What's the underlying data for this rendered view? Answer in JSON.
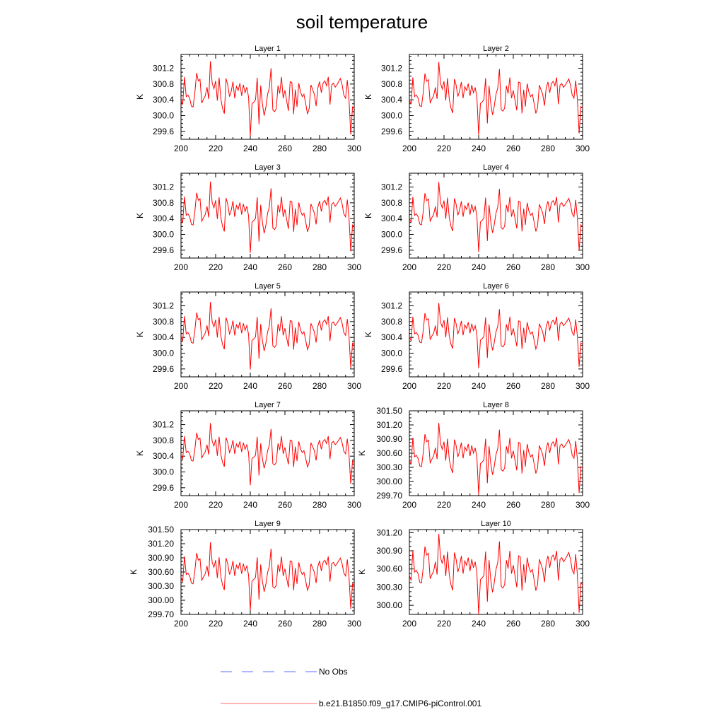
{
  "title": "soil temperature",
  "colors": {
    "series": "#ff0000",
    "obs": "#5b6cff",
    "axis": "#000000"
  },
  "legend": {
    "placement": "bottom",
    "entries": [
      {
        "label": "No Obs",
        "style": "dashed",
        "color": "#5b6cff"
      },
      {
        "label": "b.e21.B1850.f09_g17.CMIP6-piControl.001",
        "style": "solid",
        "color": "#ff0000"
      }
    ]
  },
  "chart_data": [
    {
      "type": "line",
      "title": "Layer 1",
      "ylabel": "K",
      "xlim": [
        200,
        300
      ],
      "xticks": [
        200,
        220,
        240,
        260,
        280,
        300
      ],
      "ylim": [
        299.4,
        301.55
      ],
      "yticks": [
        299.6,
        300.0,
        300.4,
        300.8,
        301.2
      ],
      "ytick_labels": [
        "299.6",
        "300.0",
        "300.4",
        "300.8",
        "301.2"
      ],
      "x_start": 200,
      "x_step": 1,
      "offset": 0.0,
      "scale": 1.0,
      "trim": 0.0
    },
    {
      "type": "line",
      "title": "Layer 2",
      "ylabel": "K",
      "xlim": [
        200,
        300
      ],
      "xticks": [
        200,
        220,
        240,
        260,
        280,
        300
      ],
      "ylim": [
        299.4,
        301.55
      ],
      "yticks": [
        299.6,
        300.0,
        300.4,
        300.8,
        301.2
      ],
      "ytick_labels": [
        "299.6",
        "300.0",
        "300.4",
        "300.8",
        "301.2"
      ],
      "x_start": 200,
      "x_step": 1,
      "offset": 0.0,
      "scale": 0.97,
      "trim": 0.0
    },
    {
      "type": "line",
      "title": "Layer 3",
      "ylabel": "K",
      "xlim": [
        200,
        300
      ],
      "xticks": [
        200,
        220,
        240,
        260,
        280,
        300
      ],
      "ylim": [
        299.4,
        301.55
      ],
      "yticks": [
        299.6,
        300.0,
        300.4,
        300.8,
        301.2
      ],
      "ytick_labels": [
        "299.6",
        "300.0",
        "300.4",
        "300.8",
        "301.2"
      ],
      "x_start": 200,
      "x_step": 1,
      "offset": 0.0,
      "scale": 0.95,
      "trim": 0.0
    },
    {
      "type": "line",
      "title": "Layer 4",
      "ylabel": "K",
      "xlim": [
        200,
        300
      ],
      "xticks": [
        200,
        220,
        240,
        260,
        280,
        300
      ],
      "ylim": [
        299.4,
        301.55
      ],
      "yticks": [
        299.6,
        300.0,
        300.4,
        300.8,
        301.2
      ],
      "ytick_labels": [
        "299.6",
        "300.0",
        "300.4",
        "300.8",
        "301.2"
      ],
      "x_start": 200,
      "x_step": 1,
      "offset": 0.0,
      "scale": 0.93,
      "trim": 0.0
    },
    {
      "type": "line",
      "title": "Layer 5",
      "ylabel": "K",
      "xlim": [
        200,
        300
      ],
      "xticks": [
        200,
        220,
        240,
        260,
        280,
        300
      ],
      "ylim": [
        299.4,
        301.55
      ],
      "yticks": [
        299.6,
        300.0,
        300.4,
        300.8,
        301.2
      ],
      "ytick_labels": [
        "299.6",
        "300.0",
        "300.4",
        "300.8",
        "301.2"
      ],
      "x_start": 200,
      "x_step": 1,
      "offset": 0.0,
      "scale": 0.9,
      "trim": 0.0
    },
    {
      "type": "line",
      "title": "Layer 6",
      "ylabel": "K",
      "xlim": [
        200,
        300
      ],
      "xticks": [
        200,
        220,
        240,
        260,
        280,
        300
      ],
      "ylim": [
        299.4,
        301.55
      ],
      "yticks": [
        299.6,
        300.0,
        300.4,
        300.8,
        301.2
      ],
      "ytick_labels": [
        "299.6",
        "300.0",
        "300.4",
        "300.8",
        "301.2"
      ],
      "x_start": 200,
      "x_step": 1,
      "offset": 0.0,
      "scale": 0.87,
      "trim": 0.0
    },
    {
      "type": "line",
      "title": "Layer 7",
      "ylabel": "K",
      "xlim": [
        200,
        300
      ],
      "xticks": [
        200,
        220,
        240,
        260,
        280,
        300
      ],
      "ylim": [
        299.4,
        301.55
      ],
      "yticks": [
        299.6,
        300.0,
        300.4,
        300.8,
        301.2
      ],
      "ytick_labels": [
        "299.6",
        "300.0",
        "300.4",
        "300.8",
        "301.2"
      ],
      "x_start": 200,
      "x_step": 1,
      "offset": 0.0,
      "scale": 0.83,
      "trim": 0.0
    },
    {
      "type": "line",
      "title": "Layer 8",
      "ylabel": "K",
      "xlim": [
        200,
        300
      ],
      "xticks": [
        200,
        220,
        240,
        260,
        280,
        300
      ],
      "ylim": [
        299.7,
        301.5
      ],
      "yticks": [
        299.7,
        300.0,
        300.3,
        300.6,
        300.9,
        301.2,
        301.5
      ],
      "ytick_labels": [
        "299.70",
        "300.00",
        "300.30",
        "300.60",
        "300.90",
        "301.20",
        "301.50"
      ],
      "x_start": 200,
      "x_step": 1,
      "offset": 0.03,
      "scale": 0.8,
      "trim": 0.0
    },
    {
      "type": "line",
      "title": "Layer 9",
      "ylabel": "K",
      "xlim": [
        200,
        300
      ],
      "xticks": [
        200,
        220,
        240,
        260,
        280,
        300
      ],
      "ylim": [
        299.7,
        301.5
      ],
      "yticks": [
        299.7,
        300.0,
        300.3,
        300.6,
        300.9,
        301.2,
        301.5
      ],
      "ytick_labels": [
        "299.70",
        "300.00",
        "300.30",
        "300.60",
        "300.90",
        "301.20",
        "301.50"
      ],
      "x_start": 200,
      "x_step": 1,
      "offset": 0.05,
      "scale": 0.76,
      "trim": 0.0
    },
    {
      "type": "line",
      "title": "Layer 10",
      "ylabel": "K",
      "xlim": [
        200,
        300
      ],
      "xticks": [
        200,
        220,
        240,
        260,
        280,
        300
      ],
      "ylim": [
        299.85,
        301.25
      ],
      "yticks": [
        300.0,
        300.3,
        300.6,
        300.9,
        301.2
      ],
      "ytick_labels": [
        "300.00",
        "300.30",
        "300.60",
        "300.90",
        "301.20"
      ],
      "x_start": 200,
      "x_step": 1,
      "offset": 0.05,
      "scale": 0.7,
      "trim": 0.0
    }
  ],
  "base_series": [
    300.4,
    300.28,
    300.98,
    300.48,
    300.52,
    300.44,
    300.24,
    300.22,
    300.58,
    301.08,
    300.88,
    300.92,
    300.32,
    300.42,
    300.5,
    300.72,
    300.42,
    301.38,
    300.82,
    300.68,
    300.88,
    300.38,
    300.96,
    300.42,
    300.18,
    300.05,
    300.94,
    300.78,
    300.48,
    300.62,
    300.86,
    300.44,
    300.74,
    300.64,
    300.82,
    300.5,
    300.78,
    300.58,
    300.72,
    300.46,
    299.48,
    300.3,
    300.34,
    300.4,
    300.96,
    299.78,
    300.76,
    300.3,
    300.0,
    300.22,
    300.54,
    300.7,
    301.2,
    300.14,
    300.1,
    300.18,
    300.76,
    300.56,
    300.98,
    300.44,
    300.64,
    300.38,
    300.12,
    300.86,
    300.84,
    300.04,
    300.66,
    300.22,
    300.82,
    300.6,
    300.48,
    300.54,
    300.3,
    300.04,
    300.18,
    300.78,
    300.66,
    300.54,
    300.24,
    300.7,
    300.86,
    300.58,
    300.82,
    300.88,
    300.76,
    300.98,
    300.28,
    300.78,
    300.82,
    300.72,
    300.78,
    300.86,
    300.94,
    300.78,
    300.52,
    300.44,
    300.9,
    300.42,
    299.52,
    300.22,
    300.18
  ]
}
